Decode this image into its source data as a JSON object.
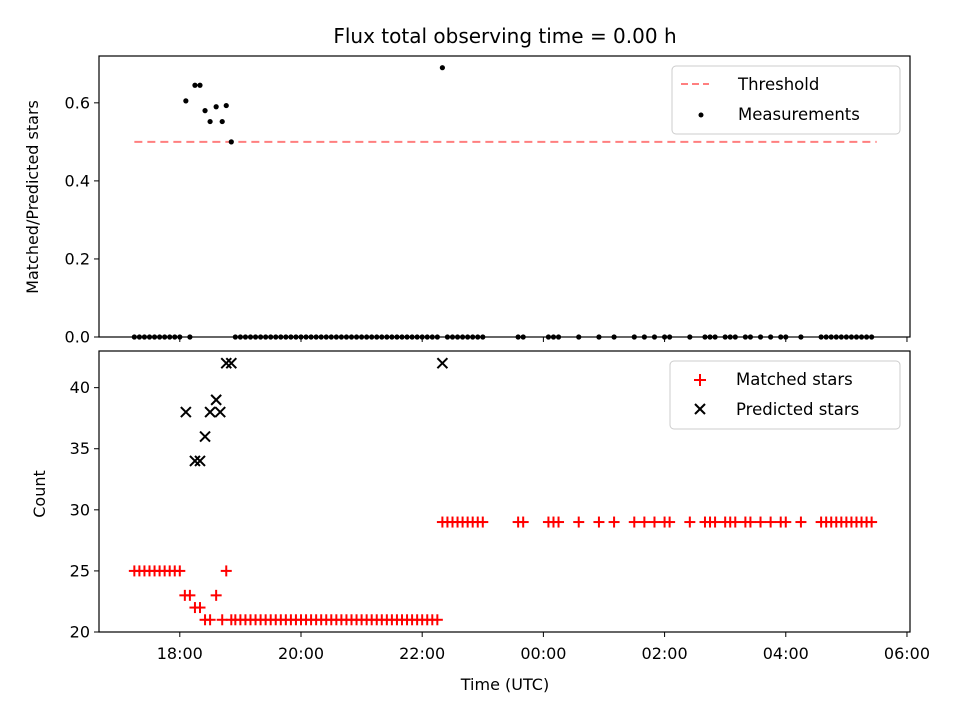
{
  "chart_data": [
    {
      "type": "scatter",
      "title": "Flux total observing time = 0.00 h",
      "xlabel": "",
      "ylabel": "Matched/Predicted stars",
      "ylim": [
        0.0,
        0.72
      ],
      "yticks": [
        "0.0",
        "0.2",
        "0.4",
        "0.6"
      ],
      "yticks_values": [
        0.0,
        0.2,
        0.4,
        0.6
      ],
      "legend": {
        "position": "top-right",
        "entries": [
          "Threshold",
          "Measurements"
        ]
      },
      "threshold": {
        "name": "Threshold",
        "value": 0.5,
        "x_start": "17:15",
        "x_end": "05:30",
        "color": "#ff7f7f"
      },
      "series": [
        {
          "name": "Measurements",
          "color": "#000000",
          "points": [
            [
              "18:06",
              0.605
            ],
            [
              "18:15",
              0.645
            ],
            [
              "18:20",
              0.645
            ],
            [
              "18:25",
              0.58
            ],
            [
              "18:30",
              0.552
            ],
            [
              "18:36",
              0.59
            ],
            [
              "18:42",
              0.552
            ],
            [
              "18:46",
              0.593
            ],
            [
              "18:51",
              0.5
            ],
            [
              "22:20",
              0.69
            ],
            [
              "17:15",
              0
            ],
            [
              "17:20",
              0
            ],
            [
              "17:25",
              0
            ],
            [
              "17:30",
              0
            ],
            [
              "17:35",
              0
            ],
            [
              "17:40",
              0
            ],
            [
              "17:45",
              0
            ],
            [
              "17:50",
              0
            ],
            [
              "17:55",
              0
            ],
            [
              "18:00",
              0
            ],
            [
              "18:10",
              0
            ],
            [
              "18:55",
              0
            ],
            [
              "19:00",
              0
            ],
            [
              "19:05",
              0
            ],
            [
              "19:10",
              0
            ],
            [
              "19:15",
              0
            ],
            [
              "19:20",
              0
            ],
            [
              "19:25",
              0
            ],
            [
              "19:30",
              0
            ],
            [
              "19:35",
              0
            ],
            [
              "19:40",
              0
            ],
            [
              "19:45",
              0
            ],
            [
              "19:50",
              0
            ],
            [
              "19:55",
              0
            ],
            [
              "20:00",
              0
            ],
            [
              "20:05",
              0
            ],
            [
              "20:10",
              0
            ],
            [
              "20:15",
              0
            ],
            [
              "20:20",
              0
            ],
            [
              "20:25",
              0
            ],
            [
              "20:30",
              0
            ],
            [
              "20:35",
              0
            ],
            [
              "20:40",
              0
            ],
            [
              "20:45",
              0
            ],
            [
              "20:50",
              0
            ],
            [
              "20:55",
              0
            ],
            [
              "21:00",
              0
            ],
            [
              "21:05",
              0
            ],
            [
              "21:10",
              0
            ],
            [
              "21:15",
              0
            ],
            [
              "21:20",
              0
            ],
            [
              "21:25",
              0
            ],
            [
              "21:30",
              0
            ],
            [
              "21:35",
              0
            ],
            [
              "21:40",
              0
            ],
            [
              "21:45",
              0
            ],
            [
              "21:50",
              0
            ],
            [
              "21:55",
              0
            ],
            [
              "22:00",
              0
            ],
            [
              "22:05",
              0
            ],
            [
              "22:10",
              0
            ],
            [
              "22:15",
              0
            ],
            [
              "22:25",
              0
            ],
            [
              "22:30",
              0
            ],
            [
              "22:35",
              0
            ],
            [
              "22:40",
              0
            ],
            [
              "22:45",
              0
            ],
            [
              "22:50",
              0
            ],
            [
              "22:55",
              0
            ],
            [
              "23:00",
              0
            ],
            [
              "23:35",
              0
            ],
            [
              "23:40",
              0
            ],
            [
              "00:05",
              0
            ],
            [
              "00:10",
              0
            ],
            [
              "00:15",
              0
            ],
            [
              "00:35",
              0
            ],
            [
              "00:55",
              0
            ],
            [
              "01:10",
              0
            ],
            [
              "01:30",
              0
            ],
            [
              "01:40",
              0
            ],
            [
              "01:50",
              0
            ],
            [
              "02:00",
              0
            ],
            [
              "02:05",
              0
            ],
            [
              "02:25",
              0
            ],
            [
              "02:40",
              0
            ],
            [
              "02:45",
              0
            ],
            [
              "02:50",
              0
            ],
            [
              "03:00",
              0
            ],
            [
              "03:05",
              0
            ],
            [
              "03:10",
              0
            ],
            [
              "03:20",
              0
            ],
            [
              "03:25",
              0
            ],
            [
              "03:35",
              0
            ],
            [
              "03:45",
              0
            ],
            [
              "03:55",
              0
            ],
            [
              "04:00",
              0
            ],
            [
              "04:15",
              0
            ],
            [
              "04:35",
              0
            ],
            [
              "04:40",
              0
            ],
            [
              "04:45",
              0
            ],
            [
              "04:50",
              0
            ],
            [
              "04:55",
              0
            ],
            [
              "05:00",
              0
            ],
            [
              "05:05",
              0
            ],
            [
              "05:10",
              0
            ],
            [
              "05:15",
              0
            ],
            [
              "05:20",
              0
            ],
            [
              "05:25",
              0
            ]
          ]
        }
      ]
    },
    {
      "type": "scatter",
      "xlabel": "Time (UTC)",
      "ylabel": "Count",
      "ylim": [
        20,
        43
      ],
      "yticks": [
        "20",
        "25",
        "30",
        "35",
        "40"
      ],
      "yticks_values": [
        20,
        25,
        30,
        35,
        40
      ],
      "xticks": [
        "18:00",
        "20:00",
        "22:00",
        "00:00",
        "02:00",
        "04:00",
        "06:00"
      ],
      "xticks_values": [
        "18:00",
        "20:00",
        "22:00",
        "00:00",
        "02:00",
        "04:00",
        "06:00"
      ],
      "xlim": [
        "16:40",
        "06:03"
      ],
      "legend": {
        "position": "top-right",
        "entries": [
          "Matched stars",
          "Predicted stars"
        ]
      },
      "series": [
        {
          "name": "Matched stars",
          "marker": "plus",
          "color": "#ff0000",
          "points": [
            [
              "17:15",
              25
            ],
            [
              "17:20",
              25
            ],
            [
              "17:25",
              25
            ],
            [
              "17:30",
              25
            ],
            [
              "17:35",
              25
            ],
            [
              "17:40",
              25
            ],
            [
              "17:45",
              25
            ],
            [
              "17:50",
              25
            ],
            [
              "17:55",
              25
            ],
            [
              "18:00",
              25
            ],
            [
              "18:05",
              23
            ],
            [
              "18:10",
              23
            ],
            [
              "18:15",
              22
            ],
            [
              "18:20",
              22
            ],
            [
              "18:25",
              21
            ],
            [
              "18:30",
              21
            ],
            [
              "18:36",
              23
            ],
            [
              "18:42",
              21
            ],
            [
              "18:46",
              25
            ],
            [
              "18:51",
              21
            ],
            [
              "18:55",
              21
            ],
            [
              "19:00",
              21
            ],
            [
              "19:05",
              21
            ],
            [
              "19:10",
              21
            ],
            [
              "19:15",
              21
            ],
            [
              "19:20",
              21
            ],
            [
              "19:25",
              21
            ],
            [
              "19:30",
              21
            ],
            [
              "19:35",
              21
            ],
            [
              "19:40",
              21
            ],
            [
              "19:45",
              21
            ],
            [
              "19:50",
              21
            ],
            [
              "19:55",
              21
            ],
            [
              "20:00",
              21
            ],
            [
              "20:05",
              21
            ],
            [
              "20:10",
              21
            ],
            [
              "20:15",
              21
            ],
            [
              "20:20",
              21
            ],
            [
              "20:25",
              21
            ],
            [
              "20:30",
              21
            ],
            [
              "20:35",
              21
            ],
            [
              "20:40",
              21
            ],
            [
              "20:45",
              21
            ],
            [
              "20:50",
              21
            ],
            [
              "20:55",
              21
            ],
            [
              "21:00",
              21
            ],
            [
              "21:05",
              21
            ],
            [
              "21:10",
              21
            ],
            [
              "21:15",
              21
            ],
            [
              "21:20",
              21
            ],
            [
              "21:25",
              21
            ],
            [
              "21:30",
              21
            ],
            [
              "21:35",
              21
            ],
            [
              "21:40",
              21
            ],
            [
              "21:45",
              21
            ],
            [
              "21:50",
              21
            ],
            [
              "21:55",
              21
            ],
            [
              "22:00",
              21
            ],
            [
              "22:05",
              21
            ],
            [
              "22:10",
              21
            ],
            [
              "22:15",
              21
            ],
            [
              "22:20",
              29
            ],
            [
              "22:25",
              29
            ],
            [
              "22:30",
              29
            ],
            [
              "22:35",
              29
            ],
            [
              "22:40",
              29
            ],
            [
              "22:45",
              29
            ],
            [
              "22:50",
              29
            ],
            [
              "22:55",
              29
            ],
            [
              "23:00",
              29
            ],
            [
              "23:35",
              29
            ],
            [
              "23:40",
              29
            ],
            [
              "00:05",
              29
            ],
            [
              "00:10",
              29
            ],
            [
              "00:15",
              29
            ],
            [
              "00:35",
              29
            ],
            [
              "00:55",
              29
            ],
            [
              "01:10",
              29
            ],
            [
              "01:30",
              29
            ],
            [
              "01:40",
              29
            ],
            [
              "01:50",
              29
            ],
            [
              "02:00",
              29
            ],
            [
              "02:05",
              29
            ],
            [
              "02:25",
              29
            ],
            [
              "02:40",
              29
            ],
            [
              "02:45",
              29
            ],
            [
              "02:50",
              29
            ],
            [
              "03:00",
              29
            ],
            [
              "03:05",
              29
            ],
            [
              "03:10",
              29
            ],
            [
              "03:20",
              29
            ],
            [
              "03:25",
              29
            ],
            [
              "03:35",
              29
            ],
            [
              "03:45",
              29
            ],
            [
              "03:55",
              29
            ],
            [
              "04:00",
              29
            ],
            [
              "04:15",
              29
            ],
            [
              "04:35",
              29
            ],
            [
              "04:40",
              29
            ],
            [
              "04:45",
              29
            ],
            [
              "04:50",
              29
            ],
            [
              "04:55",
              29
            ],
            [
              "05:00",
              29
            ],
            [
              "05:05",
              29
            ],
            [
              "05:10",
              29
            ],
            [
              "05:15",
              29
            ],
            [
              "05:20",
              29
            ],
            [
              "05:25",
              29
            ]
          ]
        },
        {
          "name": "Predicted stars",
          "marker": "x",
          "color": "#000000",
          "points": [
            [
              "18:06",
              38
            ],
            [
              "18:15",
              34
            ],
            [
              "18:20",
              34
            ],
            [
              "18:25",
              36
            ],
            [
              "18:30",
              38
            ],
            [
              "18:36",
              39
            ],
            [
              "18:40",
              38
            ],
            [
              "18:46",
              42
            ],
            [
              "18:51",
              42
            ],
            [
              "22:20",
              42
            ]
          ]
        }
      ]
    }
  ]
}
